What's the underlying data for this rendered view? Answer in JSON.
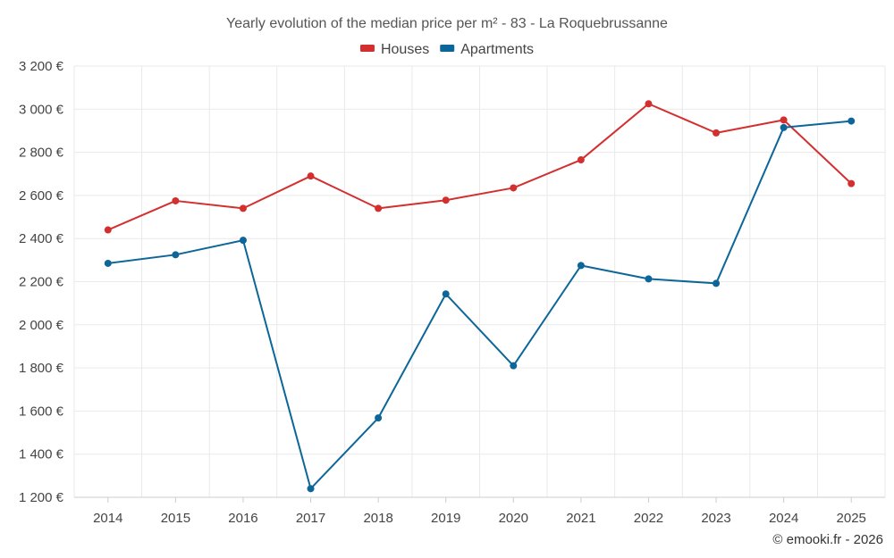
{
  "chart_data": {
    "type": "line",
    "title": "Yearly evolution of the median price per m² - 83 - La Roquebrussanne",
    "categories": [
      "2014",
      "2015",
      "2016",
      "2017",
      "2018",
      "2019",
      "2020",
      "2021",
      "2022",
      "2023",
      "2024",
      "2025"
    ],
    "series": [
      {
        "name": "Houses",
        "color": "#d32f2f",
        "values": [
          2440,
          2575,
          2540,
          2690,
          2540,
          2578,
          2635,
          2765,
          3025,
          2890,
          2950,
          2655
        ]
      },
      {
        "name": "Apartments",
        "color": "#0d6699",
        "values": [
          2285,
          2325,
          2392,
          1240,
          1568,
          2143,
          1810,
          2275,
          2213,
          2192,
          2915,
          2945
        ]
      }
    ],
    "ylim": [
      1200,
      3200
    ],
    "yticks": [
      1200,
      1400,
      1600,
      1800,
      2000,
      2200,
      2400,
      2600,
      2800,
      3000,
      3200
    ],
    "ytick_labels": [
      "1 200 €",
      "1 400 €",
      "1 600 €",
      "1 800 €",
      "2 000 €",
      "2 200 €",
      "2 400 €",
      "2 600 €",
      "2 800 €",
      "3 000 €",
      "3 200 €"
    ],
    "xlabel": "",
    "ylabel": "",
    "legend_position": "top-center",
    "grid": true
  },
  "credit": "© emooki.fr - 2026"
}
